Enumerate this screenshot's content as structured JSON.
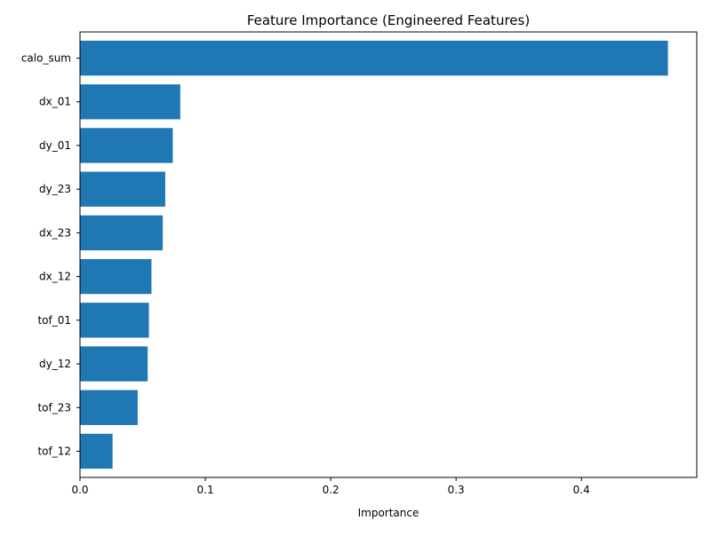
{
  "chart_data": {
    "type": "bar",
    "orientation": "horizontal",
    "title": "Feature Importance (Engineered Features)",
    "xlabel": "Importance",
    "ylabel": "",
    "categories": [
      "calo_sum",
      "dx_01",
      "dy_01",
      "dy_23",
      "dx_23",
      "dx_12",
      "tof_01",
      "dy_12",
      "tof_23",
      "tof_12"
    ],
    "values": [
      0.469,
      0.08,
      0.074,
      0.068,
      0.066,
      0.057,
      0.055,
      0.054,
      0.046,
      0.026
    ],
    "xlim": [
      0.0,
      0.492
    ],
    "xticks": [
      0.0,
      0.1,
      0.2,
      0.3,
      0.4
    ],
    "xtick_labels": [
      "0.0",
      "0.1",
      "0.2",
      "0.3",
      "0.4"
    ],
    "bar_color": "#1f77b4",
    "grid": false,
    "legend": "none"
  }
}
